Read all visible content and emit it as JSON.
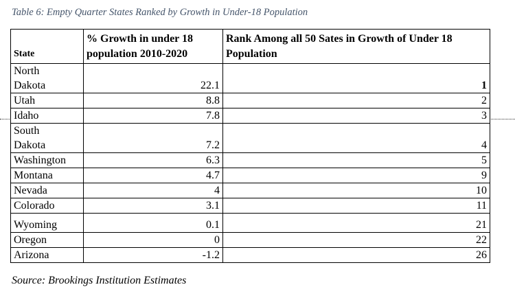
{
  "caption": "Table 6: Empty Quarter States Ranked by Growth in Under-18 Population",
  "table": {
    "headers": {
      "state": "State",
      "growth": "% Growth in under 18 population 2010-2020",
      "rank": "Rank Among all 50 Sates in Growth of Under 18 Population"
    },
    "rows": [
      {
        "state": "North Dakota",
        "growth": "22.1",
        "rank": "1"
      },
      {
        "state": "Utah",
        "growth": "8.8",
        "rank": "2"
      },
      {
        "state": "Idaho",
        "growth": "7.8",
        "rank": "3"
      },
      {
        "state": "South Dakota",
        "growth": "7.2",
        "rank": "4"
      },
      {
        "state": "Washington",
        "growth": "6.3",
        "rank": "5"
      },
      {
        "state": "Montana",
        "growth": "4.7",
        "rank": "9"
      },
      {
        "state": "Nevada",
        "growth": "4",
        "rank": "10"
      },
      {
        "state": "Colorado",
        "growth": "3.1",
        "rank": "11"
      },
      {
        "state": "Wyoming",
        "growth": "0.1",
        "rank": "21"
      },
      {
        "state": "Oregon",
        "growth": "0",
        "rank": "22"
      },
      {
        "state": "Arizona",
        "growth": "-1.2",
        "rank": "26"
      }
    ]
  },
  "source": "Source: Brookings Institution Estimates",
  "colors": {
    "caption": "#44546a",
    "text": "#000000",
    "border": "#000000"
  }
}
